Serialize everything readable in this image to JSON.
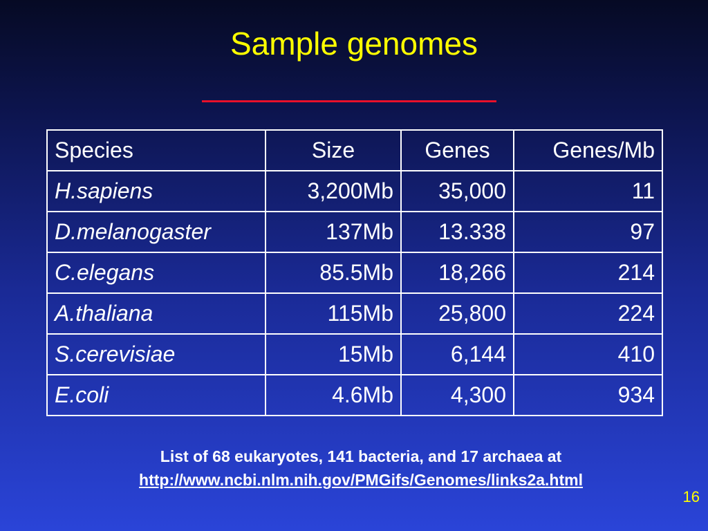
{
  "slide": {
    "title": "Sample genomes",
    "page_number": "16",
    "colors": {
      "title": "#ffff00",
      "underline": "#e8102a",
      "text": "#ffffff",
      "background_top": "#060a24",
      "background_bottom": "#2a44d8"
    }
  },
  "table": {
    "headers": [
      "Species",
      "Size",
      "Genes",
      "Genes/Mb"
    ],
    "rows": [
      [
        "H.sapiens",
        "3,200Mb",
        "35,000",
        "11"
      ],
      [
        "D.melanogaster",
        "137Mb",
        "13.338",
        "97"
      ],
      [
        "C.elegans",
        "85.5Mb",
        "18,266",
        "214"
      ],
      [
        "A.thaliana",
        "115Mb",
        "25,800",
        "224"
      ],
      [
        "S.cerevisiae",
        "15Mb",
        "6,144",
        "410"
      ],
      [
        "E.coli",
        "4.6Mb",
        "4,300",
        "934"
      ]
    ]
  },
  "footnote": {
    "text": "List of 68 eukaryotes, 141 bacteria, and 17 archaea at",
    "link": "http://www.ncbi.nlm.nih.gov/PMGifs/Genomes/links2a.html"
  }
}
